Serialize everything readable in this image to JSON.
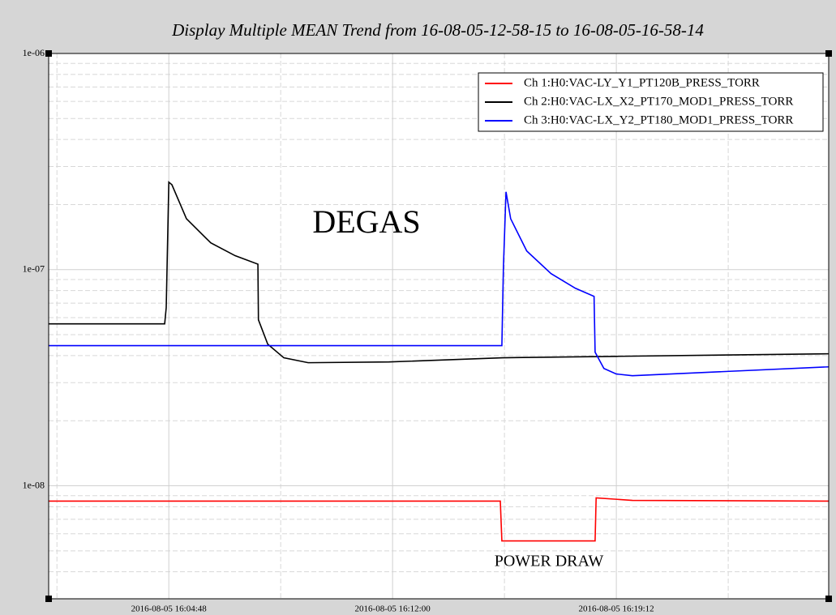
{
  "chart_data": {
    "type": "line",
    "title": "Display Multiple MEAN Trend from 16-08-05-12-58-15 to 16-08-05-16-58-14",
    "annotations": [
      "DEGAS",
      "POWER DRAW"
    ],
    "log_y": true,
    "grid": true,
    "legend": "upper right",
    "xlim": [
      "2016-08-05 16:00:56",
      "2016-08-05 16:26:02"
    ],
    "xticks": [
      "2016-08-05 16:04:48",
      "2016-08-05 16:12:00",
      "2016-08-05 16:19:12"
    ],
    "xminorticks": [
      "2016-08-05 16:01:12",
      "2016-08-05 16:08:24",
      "2016-08-05 16:15:36",
      "2016-08-05 16:22:48"
    ],
    "ylim": [
      3e-09,
      1e-06
    ],
    "yticks": [
      {
        "value": 1e-08,
        "label": "1e-08"
      },
      {
        "value": 1e-07,
        "label": "1e-07"
      },
      {
        "value": 1e-06,
        "label": "1e-06"
      }
    ],
    "yminorticks": [
      3e-09,
      4e-09,
      5e-09,
      6e-09,
      7e-09,
      8e-09,
      9e-09,
      2e-08,
      3e-08,
      4e-08,
      5e-08,
      6e-08,
      7e-08,
      8e-08,
      9e-08,
      2e-07,
      3e-07,
      4e-07,
      5e-07,
      6e-07,
      7e-07,
      8e-07,
      9e-07
    ],
    "series": [
      {
        "name": "Ch 1:H0:VAC-LY_Y1_PT120B_PRESS_TORR",
        "color": "#ff0000",
        "x": [
          "2016-08-05 16:00:56",
          "2016-08-05 16:15:28",
          "2016-08-05 16:15:31",
          "2016-08-05 16:18:31",
          "2016-08-05 16:18:33",
          "2016-08-05 16:19:43",
          "2016-08-05 16:26:02"
        ],
        "values": [
          8.49e-09,
          8.49e-09,
          5.56e-09,
          5.56e-09,
          8.79e-09,
          8.56e-09,
          8.49e-09
        ]
      },
      {
        "name": "Ch 2:H0:VAC-LX_X2_PT170_MOD1_PRESS_TORR",
        "color": "#000000",
        "x": [
          "2016-08-05 16:00:56",
          "2016-08-05 16:04:40",
          "2016-08-05 16:04:43",
          "2016-08-05 16:04:48",
          "2016-08-05 16:04:54",
          "2016-08-05 16:05:22",
          "2016-08-05 16:06:09",
          "2016-08-05 16:06:56",
          "2016-08-05 16:07:40",
          "2016-08-05 16:07:41",
          "2016-08-05 16:07:59",
          "2016-08-05 16:08:30",
          "2016-08-05 16:09:17",
          "2016-08-05 16:11:53",
          "2016-08-05 16:15:32",
          "2016-08-05 16:19:12",
          "2016-08-05 16:26:02"
        ],
        "values": [
          5.61e-08,
          5.61e-08,
          6.67e-08,
          2.54e-07,
          2.47e-07,
          1.72e-07,
          1.33e-07,
          1.16e-07,
          1.06e-07,
          5.86e-08,
          4.52e-08,
          3.91e-08,
          3.71e-08,
          3.74e-08,
          3.91e-08,
          3.97e-08,
          4.08e-08
        ]
      },
      {
        "name": "Ch 3:H0:VAC-LX_Y2_PT180_MOD1_PRESS_TORR",
        "color": "#0000ff",
        "x": [
          "2016-08-05 16:00:56",
          "2016-08-05 16:15:31",
          "2016-08-05 16:15:34",
          "2016-08-05 16:15:39",
          "2016-08-05 16:15:48",
          "2016-08-05 16:16:19",
          "2016-08-05 16:17:06",
          "2016-08-05 16:17:53",
          "2016-08-05 16:18:29",
          "2016-08-05 16:18:31",
          "2016-08-05 16:18:48",
          "2016-08-05 16:19:12",
          "2016-08-05 16:19:43",
          "2016-08-05 16:26:02"
        ],
        "values": [
          4.45e-08,
          4.45e-08,
          1.03e-07,
          2.29e-07,
          1.72e-07,
          1.22e-07,
          9.58e-08,
          8.2e-08,
          7.52e-08,
          4.15e-08,
          3.49e-08,
          3.29e-08,
          3.23e-08,
          3.55e-08
        ]
      }
    ]
  }
}
